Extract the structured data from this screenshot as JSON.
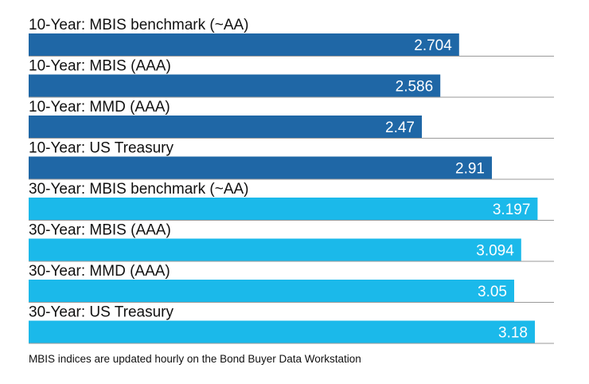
{
  "chart_data": {
    "type": "bar",
    "orientation": "horizontal",
    "categories": [
      "10-Year: MBIS benchmark (~AA)",
      "10-Year: MBIS (AAA)",
      "10-Year: MMD (AAA)",
      "10-Year: US Treasury",
      "30-Year: MBIS benchmark (~AA)",
      "30-Year: MBIS (AAA)",
      "30-Year: MMD (AAA)",
      "30-Year: US Treasury"
    ],
    "values": [
      2.704,
      2.586,
      2.47,
      2.91,
      3.197,
      3.094,
      3.05,
      3.18
    ],
    "value_labels": [
      "2.704",
      "2.586",
      "2.47",
      "2.91",
      "3.197",
      "3.094",
      "3.05",
      "3.18"
    ],
    "bar_colors": [
      "#1f67a6",
      "#1f67a6",
      "#1f67a6",
      "#1f67a6",
      "#1bb9ea",
      "#1bb9ea",
      "#1bb9ea",
      "#1bb9ea"
    ],
    "xlim": [
      0,
      3.3
    ],
    "grid": false,
    "title": "",
    "xlabel": "",
    "ylabel": ""
  },
  "footnote": "MBIS indices are updated hourly on the Bond Buyer Data Workstation"
}
